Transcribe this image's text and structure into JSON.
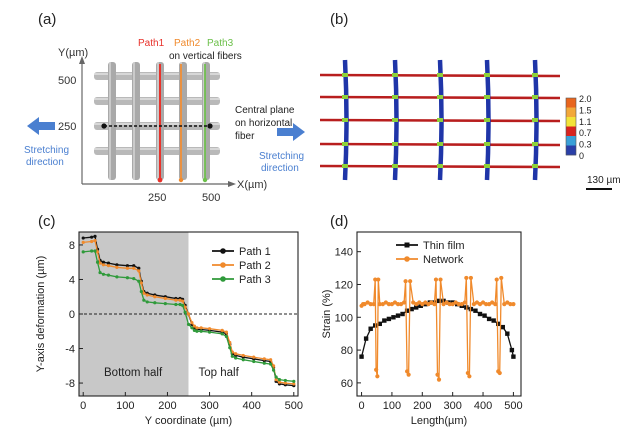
{
  "panels": {
    "a": {
      "label": "(a)",
      "y_axis_label": "Y(µm)",
      "x_axis_label": "X(µm)",
      "y_ticks": [
        "500",
        "250"
      ],
      "x_ticks": [
        "250",
        "500"
      ],
      "paths": [
        {
          "name": "Path1",
          "color": "#e8322b"
        },
        {
          "name": "Path2",
          "color": "#f08a2c"
        },
        {
          "name": "Path3",
          "color": "#6cc04a"
        }
      ],
      "paths_note": "on vertical fibers",
      "central_plane_line1": "Central plane",
      "central_plane_line2": "on horizontal",
      "central_plane_line3": "fiber",
      "stretch_left_line1": "Stretching",
      "stretch_left_line2": "direction",
      "stretch_right_line1": "Stretching",
      "stretch_right_line2": "direction",
      "arrow_color": "#4a7fd0"
    },
    "b": {
      "label": "(b)",
      "colorbar_values": [
        "2.0",
        "1.5",
        "1.1",
        "0.7",
        "0.3",
        "0"
      ],
      "colorbar_colors": [
        "#e8651e",
        "#f2a83a",
        "#f2e33a",
        "#d8241f",
        "#3aa0d8",
        "#2a3fa8"
      ],
      "scale_bar": "130 µm",
      "fiber_red": "#b81e1e",
      "fiber_blue": "#1f35a8"
    }
  },
  "chart_data": [
    {
      "panel": "(c)",
      "type": "line",
      "xlabel": "Y coordinate (µm)",
      "ylabel": "Y-axis deformation (µm)",
      "xlim": [
        -10,
        510
      ],
      "ylim": [
        -9.5,
        9.5
      ],
      "x_ticks": [
        0,
        100,
        200,
        300,
        400,
        500
      ],
      "y_ticks": [
        8,
        4,
        0,
        -4,
        -8
      ],
      "y_tick_labels": [
        "8",
        "4",
        "0",
        "-4",
        "-8"
      ],
      "zero_line": 0,
      "shaded_region": {
        "x": [
          -10,
          250
        ],
        "color": "#c8c8c8"
      },
      "region_labels": [
        "Bottom half",
        "Top half"
      ],
      "legend_position": "top-right",
      "series": [
        {
          "name": "Path 1",
          "color": "#111111",
          "x": [
            0,
            20,
            28,
            34,
            40,
            48,
            60,
            80,
            105,
            120,
            132,
            138,
            144,
            152,
            170,
            195,
            220,
            230,
            236,
            242,
            250,
            258,
            264,
            270,
            280,
            300,
            330,
            340,
            348,
            354,
            362,
            380,
            405,
            430,
            445,
            452,
            458,
            466,
            480,
            500
          ],
          "y": [
            8.8,
            8.9,
            9.0,
            7.5,
            6.2,
            6.0,
            5.9,
            5.7,
            5.6,
            5.6,
            5.3,
            3.8,
            2.6,
            2.4,
            2.2,
            2.0,
            1.8,
            1.8,
            1.7,
            1.0,
            0.0,
            -1.2,
            -1.6,
            -1.8,
            -1.8,
            -1.9,
            -2.1,
            -2.3,
            -3.5,
            -4.6,
            -4.8,
            -5.0,
            -5.2,
            -5.4,
            -5.5,
            -6.2,
            -7.8,
            -8.1,
            -8.2,
            -8.3
          ]
        },
        {
          "name": "Path 2",
          "color": "#f08a2c",
          "x": [
            0,
            20,
            28,
            34,
            40,
            48,
            60,
            80,
            105,
            120,
            132,
            138,
            144,
            152,
            170,
            195,
            220,
            230,
            236,
            242,
            250,
            258,
            264,
            270,
            280,
            300,
            330,
            340,
            348,
            354,
            362,
            380,
            405,
            430,
            445,
            452,
            458,
            466,
            480,
            500
          ],
          "y": [
            8.3,
            8.4,
            8.5,
            7.2,
            5.9,
            5.7,
            5.6,
            5.4,
            5.3,
            5.3,
            5.0,
            3.6,
            2.4,
            2.2,
            2.0,
            1.8,
            1.6,
            1.6,
            1.5,
            0.8,
            0.0,
            -1.0,
            -1.4,
            -1.6,
            -1.6,
            -1.7,
            -1.9,
            -2.1,
            -3.3,
            -4.4,
            -4.6,
            -4.8,
            -5.0,
            -5.2,
            -5.3,
            -6.0,
            -7.6,
            -7.9,
            -8.0,
            -8.1
          ]
        },
        {
          "name": "Path 3",
          "color": "#2f9a3a",
          "x": [
            0,
            20,
            28,
            34,
            40,
            48,
            60,
            80,
            105,
            120,
            132,
            138,
            144,
            152,
            170,
            195,
            220,
            230,
            236,
            242,
            250,
            258,
            264,
            270,
            280,
            300,
            330,
            340,
            348,
            354,
            362,
            380,
            405,
            430,
            445,
            452,
            458,
            466,
            480,
            500
          ],
          "y": [
            7.2,
            7.3,
            7.3,
            6.0,
            4.8,
            4.6,
            4.5,
            4.3,
            4.2,
            4.1,
            3.8,
            2.6,
            1.6,
            1.4,
            1.3,
            1.2,
            1.1,
            1.1,
            1.0,
            0.2,
            -1.2,
            -1.6,
            -1.9,
            -2.0,
            -2.0,
            -2.1,
            -2.3,
            -2.6,
            -3.9,
            -4.9,
            -5.1,
            -5.3,
            -5.5,
            -5.7,
            -5.8,
            -6.5,
            -7.3,
            -7.6,
            -7.7,
            -7.8
          ]
        }
      ]
    },
    {
      "panel": "(d)",
      "type": "line",
      "xlabel": "Length(µm)",
      "ylabel": "Strain (%)",
      "xlim": [
        -15,
        525
      ],
      "ylim": [
        52,
        152
      ],
      "x_ticks": [
        0,
        100,
        200,
        300,
        400,
        500
      ],
      "y_ticks": [
        60,
        80,
        100,
        120,
        140
      ],
      "legend_position": "top-left",
      "series": [
        {
          "name": "Thin film",
          "color": "#111111",
          "x": [
            0,
            15,
            30,
            45,
            60,
            75,
            90,
            105,
            120,
            135,
            150,
            165,
            180,
            195,
            210,
            225,
            240,
            255,
            270,
            285,
            300,
            315,
            330,
            345,
            360,
            375,
            390,
            405,
            420,
            435,
            450,
            465,
            480,
            495,
            500
          ],
          "y": [
            76,
            87,
            93,
            95,
            96,
            98,
            99,
            100,
            101,
            102,
            104,
            105,
            106,
            107,
            108,
            109,
            109,
            110,
            110,
            109,
            109,
            108,
            107,
            106,
            105,
            104,
            102,
            101,
            99,
            98,
            96,
            94,
            90,
            80,
            76
          ],
          "markers": "square"
        },
        {
          "name": "Network",
          "color": "#f08a2c",
          "x": [
            0,
            5,
            10,
            20,
            30,
            40,
            45,
            48,
            52,
            55,
            60,
            70,
            80,
            90,
            100,
            110,
            120,
            130,
            140,
            145,
            150,
            155,
            160,
            170,
            180,
            190,
            200,
            210,
            220,
            230,
            240,
            245,
            250,
            255,
            260,
            270,
            280,
            290,
            300,
            310,
            320,
            330,
            340,
            345,
            350,
            355,
            360,
            370,
            380,
            390,
            400,
            410,
            420,
            430,
            440,
            445,
            450,
            455,
            460,
            470,
            480,
            490,
            500
          ],
          "y": [
            107,
            108,
            108,
            109,
            108,
            108,
            123,
            68,
            64,
            123,
            108,
            108,
            109,
            108,
            108,
            109,
            108,
            108,
            109,
            122,
            67,
            65,
            122,
            109,
            108,
            109,
            108,
            109,
            108,
            109,
            108,
            123,
            65,
            62,
            123,
            108,
            109,
            108,
            108,
            109,
            108,
            108,
            109,
            124,
            66,
            64,
            124,
            108,
            109,
            108,
            109,
            108,
            108,
            109,
            108,
            123,
            67,
            66,
            124,
            108,
            109,
            108,
            108
          ],
          "markers": "circle"
        }
      ]
    }
  ]
}
